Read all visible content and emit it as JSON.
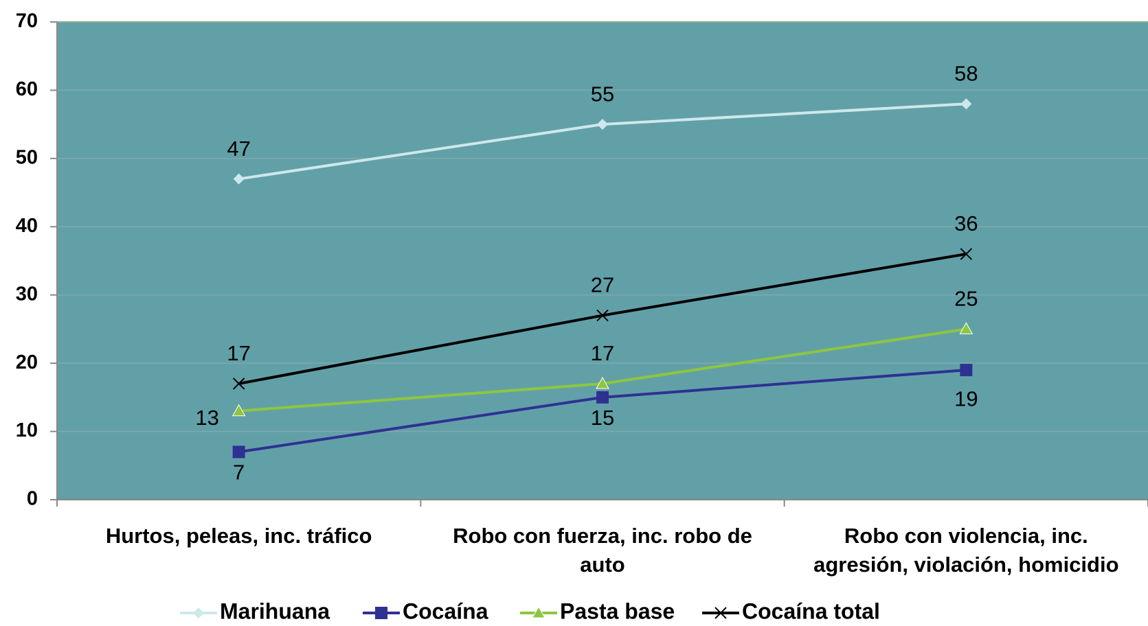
{
  "chart_data": {
    "type": "line",
    "categories": [
      "Hurtos, peleas, inc. tráfico",
      "Robo con fuerza, inc. robo de auto",
      "Robo con violencia, inc. agresión, violación, homicidio"
    ],
    "series": [
      {
        "name": "Marihuana",
        "color": "#cde8ec",
        "marker": "diamond",
        "values": [
          47,
          55,
          58
        ]
      },
      {
        "name": "Cocaína",
        "color": "#2e3192",
        "marker": "square",
        "values": [
          7,
          15,
          19
        ]
      },
      {
        "name": "Pasta base",
        "color": "#8dc63f",
        "marker": "triangle",
        "values": [
          13,
          17,
          25
        ]
      },
      {
        "name": "Cocaína total",
        "color": "#000000",
        "marker": "x",
        "values": [
          17,
          27,
          36
        ]
      }
    ],
    "ylim": [
      0,
      70
    ],
    "yticks": [
      0,
      10,
      20,
      30,
      40,
      50,
      60,
      70
    ],
    "grid": true,
    "legend": "bottom"
  }
}
